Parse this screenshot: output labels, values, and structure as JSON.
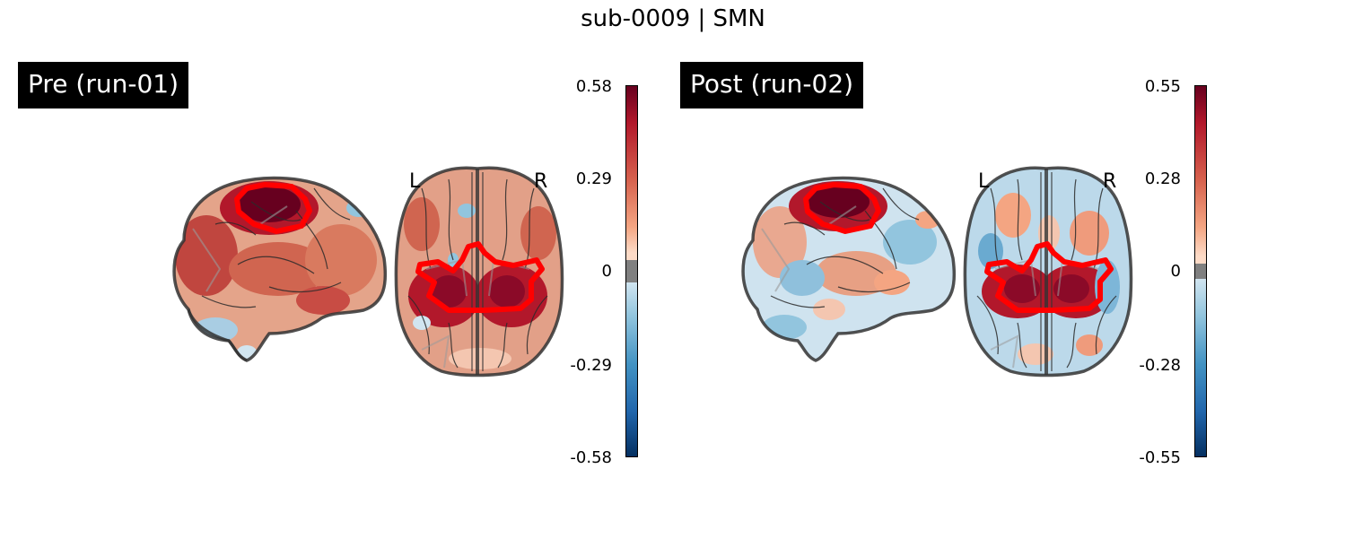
{
  "figure": {
    "title": "sub-0009 | SMN"
  },
  "panels": [
    {
      "label": "Pre (run-01)",
      "hemi_left": "L",
      "hemi_right": "R",
      "colorbar": {
        "max": "0.58",
        "mid_high": "0.29",
        "zero": "0",
        "mid_low": "-0.29",
        "min": "-0.58"
      }
    },
    {
      "label": "Post (run-02)",
      "hemi_left": "L",
      "hemi_right": "R",
      "colorbar": {
        "max": "0.55",
        "mid_high": "0.28",
        "zero": "0",
        "mid_low": "-0.28",
        "min": "-0.55"
      }
    }
  ],
  "colors": {
    "positive": "#67001f",
    "negative": "#053061",
    "roi_outline": "#ff0000",
    "threshold_band": "#808080"
  }
}
